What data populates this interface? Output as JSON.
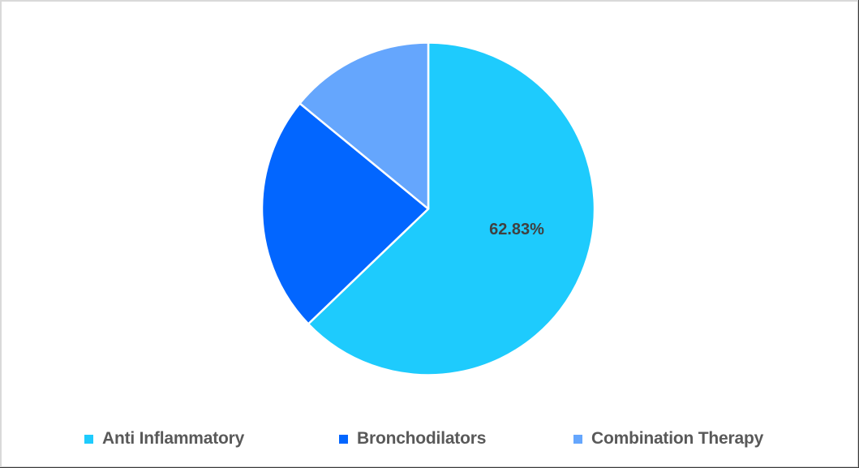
{
  "chart_data": {
    "type": "pie",
    "title": "",
    "categories": [
      "Anti Inflammatory",
      "Bronchodilators",
      "Combination Therapy"
    ],
    "values": [
      62.83,
      23.11,
      14.06
    ],
    "colors": [
      "#1ecbfd",
      "#0266ff",
      "#65a6fd"
    ],
    "data_labels": [
      {
        "category": "Anti Inflammatory",
        "text": "62.83%"
      }
    ],
    "start_angle_deg": 0,
    "direction": "clockwise",
    "legend_position": "bottom",
    "units": "percent"
  },
  "legend": {
    "items": [
      {
        "label": "Anti Inflammatory",
        "color": "#1ecbfd"
      },
      {
        "label": "Bronchodilators",
        "color": "#0266ff"
      },
      {
        "label": "Combination Therapy",
        "color": "#65a6fd"
      }
    ]
  },
  "labels": {
    "anti_inflammatory_pct": "62.83%"
  }
}
